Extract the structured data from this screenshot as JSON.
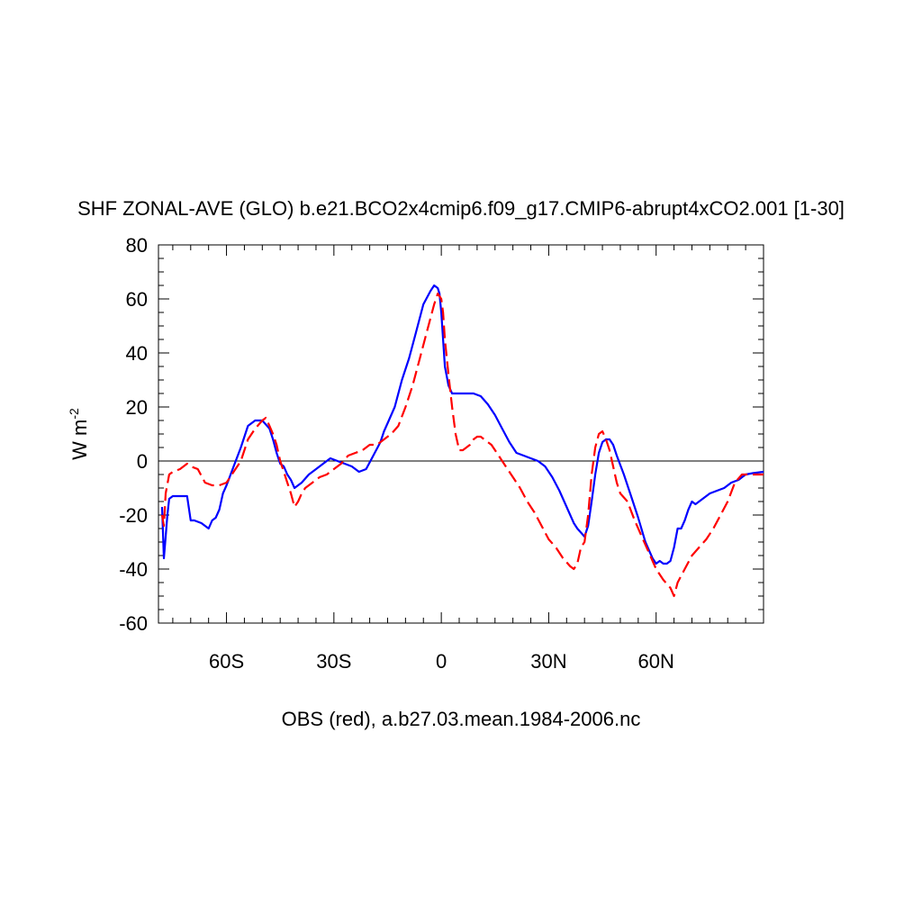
{
  "chart_data": {
    "type": "line",
    "title": "SHF ZONAL-AVE (GLO) b.e21.BCO2x4cmip6.f09_g17.CMIP6-abrupt4xCO2.001 [1-30]",
    "xlabel": "OBS (red), a.b27.03.mean.1984-2006.nc",
    "ylabel_main": "W m",
    "ylabel_sup": "-2",
    "xlim": [
      -79,
      90
    ],
    "ylim": [
      -60,
      80
    ],
    "x_ticks": [
      {
        "value": -60,
        "label": "60S"
      },
      {
        "value": -30,
        "label": "30S"
      },
      {
        "value": 0,
        "label": "0"
      },
      {
        "value": 30,
        "label": "30N"
      },
      {
        "value": 60,
        "label": "60N"
      }
    ],
    "y_ticks": [
      {
        "value": 80,
        "label": "80"
      },
      {
        "value": 60,
        "label": "60"
      },
      {
        "value": 40,
        "label": "40"
      },
      {
        "value": 20,
        "label": "20"
      },
      {
        "value": 0,
        "label": "0"
      },
      {
        "value": -20,
        "label": "-20"
      },
      {
        "value": -40,
        "label": "-40"
      },
      {
        "value": -60,
        "label": "-60"
      }
    ],
    "zero_line": true,
    "series": [
      {
        "color": "#0000ff",
        "style": "solid",
        "x": [
          -78,
          -77.5,
          -77,
          -76.5,
          -76,
          -75,
          -73,
          -71,
          -70,
          -69,
          -67,
          -65,
          -64,
          -63,
          -62,
          -61,
          -60,
          -58,
          -56,
          -54,
          -52,
          -50,
          -48,
          -47,
          -46,
          -45,
          -44,
          -43,
          -42,
          -41,
          -40,
          -39,
          -37,
          -35,
          -33,
          -31,
          -29,
          -27,
          -25,
          -23,
          -21,
          -19,
          -17,
          -16,
          -15,
          -13,
          -11,
          -9,
          -7,
          -5,
          -3,
          -2,
          -1,
          -0.5,
          0,
          0.5,
          1,
          2,
          3,
          4,
          5,
          7,
          9,
          11,
          13,
          15,
          17,
          19,
          21,
          23,
          25,
          27,
          29,
          31,
          33,
          35,
          37,
          38,
          40,
          41,
          42,
          43,
          44,
          45,
          46,
          47,
          48,
          49,
          51,
          53,
          55,
          57,
          59,
          60,
          61,
          62,
          63,
          64,
          65,
          66,
          67,
          68,
          69,
          70,
          71,
          72,
          73,
          75,
          77,
          79,
          81,
          83,
          85,
          87,
          90
        ],
        "y": [
          -17,
          -36,
          -28,
          -20,
          -14,
          -13,
          -13,
          -13,
          -22,
          -22,
          -23,
          -25,
          -22,
          -21,
          -18,
          -12,
          -9,
          -2,
          5,
          13,
          15,
          15,
          12,
          8,
          3,
          -1,
          -2,
          -5,
          -7,
          -10,
          -9,
          -8,
          -5,
          -3,
          -1,
          1,
          0,
          -1,
          -2,
          -4,
          -3,
          2,
          7,
          11,
          14,
          20,
          30,
          38,
          48,
          58,
          63,
          65,
          64,
          62,
          55,
          45,
          35,
          28,
          25,
          25,
          25,
          25,
          25,
          24,
          21,
          17,
          12,
          7,
          3,
          2,
          1,
          0,
          -2,
          -6,
          -11,
          -17,
          -23,
          -25,
          -28,
          -24,
          -15,
          -5,
          3,
          7,
          8,
          8,
          6,
          2,
          -5,
          -13,
          -21,
          -30,
          -36,
          -38,
          -37,
          -38,
          -38,
          -37,
          -32,
          -25,
          -25,
          -22,
          -18,
          -15,
          -16,
          -15,
          -14,
          -12,
          -11,
          -10,
          -8,
          -7,
          -5,
          -4.5,
          -4
        ]
      },
      {
        "color": "#ff0000",
        "style": "dashed",
        "x": [
          -78,
          -77.5,
          -77,
          -76,
          -75,
          -73,
          -71,
          -70,
          -68,
          -66,
          -64,
          -62,
          -60,
          -58,
          -56,
          -54,
          -52,
          -50,
          -49,
          -48,
          -47,
          -46,
          -45,
          -44,
          -43,
          -42,
          -41,
          -40,
          -39,
          -38,
          -36,
          -34,
          -32,
          -30,
          -28,
          -26,
          -24,
          -22,
          -20,
          -18,
          -16,
          -14,
          -12,
          -10,
          -8,
          -6,
          -4,
          -2,
          -1,
          0,
          0.5,
          1,
          2,
          3,
          4,
          5,
          6,
          7,
          8,
          9,
          10,
          11,
          12,
          14,
          16,
          18,
          20,
          22,
          24,
          26,
          28,
          30,
          32,
          34,
          36,
          37,
          38,
          39,
          40,
          41,
          42,
          43,
          44,
          45,
          46,
          47,
          48,
          49,
          50,
          52,
          54,
          56,
          58,
          60,
          62,
          64,
          65,
          66,
          68,
          70,
          72,
          74,
          76,
          78,
          80,
          82,
          84,
          86,
          88,
          90
        ],
        "y": [
          -20,
          -24,
          -12,
          -5,
          -4,
          -3,
          -1,
          -2,
          -3,
          -8,
          -9,
          -9,
          -8,
          -4,
          0,
          8,
          12,
          15,
          16,
          13,
          10,
          6,
          0,
          -4,
          -8,
          -12,
          -17,
          -15,
          -12,
          -10,
          -8,
          -6,
          -5,
          -3,
          -1,
          2,
          3,
          4,
          6,
          6,
          8,
          10,
          13,
          20,
          28,
          38,
          48,
          58,
          62,
          60,
          55,
          45,
          32,
          20,
          10,
          4,
          4,
          5,
          6,
          8,
          9,
          9,
          8,
          6,
          2,
          -2,
          -6,
          -10,
          -15,
          -19,
          -24,
          -29,
          -32,
          -36,
          -39,
          -40,
          -38,
          -32,
          -30,
          -20,
          -5,
          5,
          10,
          11,
          8,
          4,
          -2,
          -8,
          -12,
          -15,
          -22,
          -28,
          -34,
          -40,
          -44,
          -47,
          -50,
          -45,
          -40,
          -35,
          -32,
          -29,
          -25,
          -20,
          -15,
          -8,
          -5,
          -5,
          -5,
          -5
        ]
      }
    ]
  }
}
